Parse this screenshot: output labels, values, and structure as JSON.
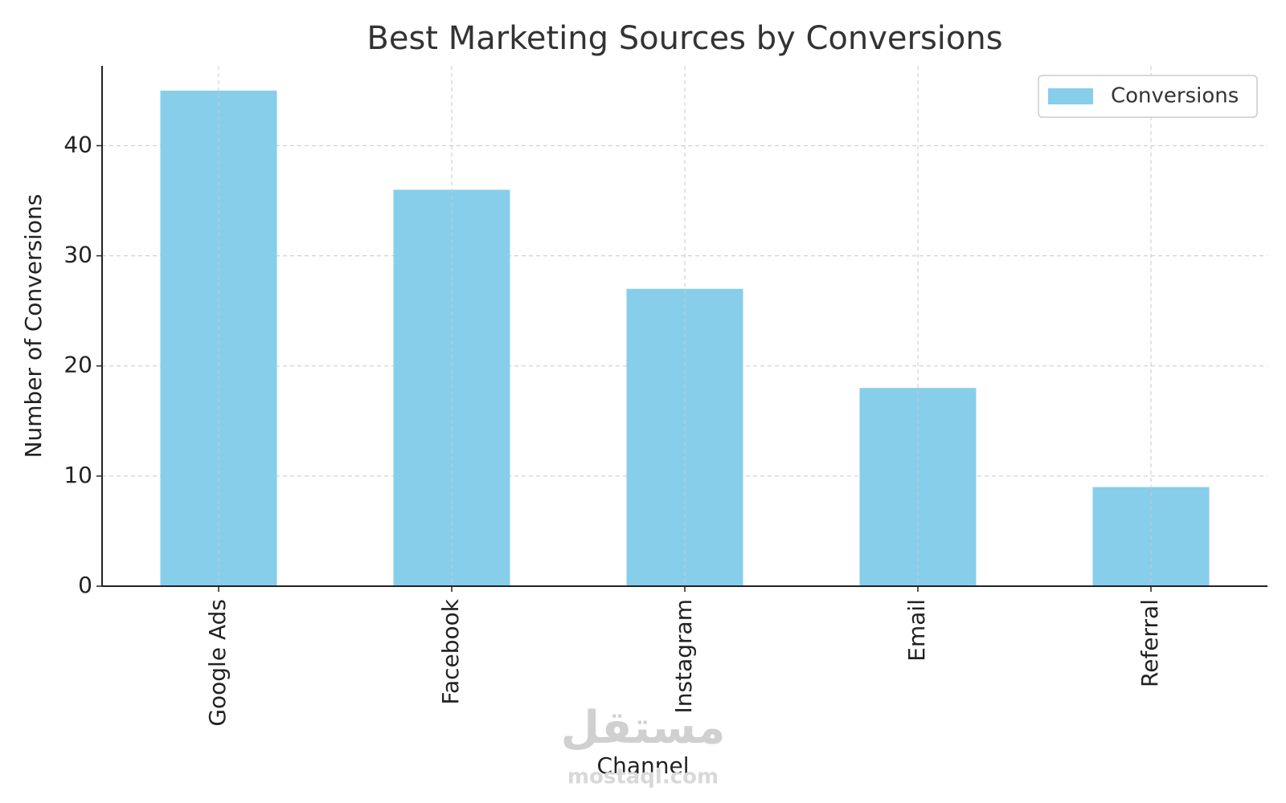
{
  "chart_data": {
    "type": "bar",
    "title": "Best Marketing Sources by Conversions",
    "x_label": "Channel",
    "y_label": "Number of Conversions",
    "categories": [
      "Google Ads",
      "Facebook",
      "Instagram",
      "Email",
      "Referral"
    ],
    "series": [
      {
        "name": "Conversions",
        "color": "#87ceeb",
        "values": [
          45,
          36,
          27,
          18,
          9
        ]
      }
    ],
    "ylim": [
      0,
      47.25
    ],
    "yticks": [
      0,
      10,
      20,
      30,
      40
    ],
    "grid": true,
    "legend": "upper right",
    "watermark": {
      "arabic": "مستقل",
      "latin": "mostaql.com"
    }
  }
}
